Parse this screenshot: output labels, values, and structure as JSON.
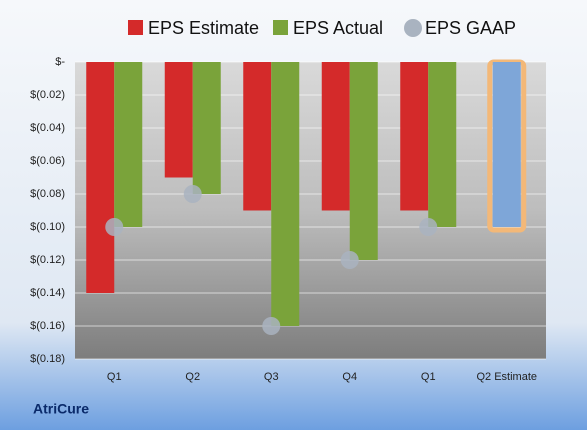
{
  "chart_data": {
    "type": "bar",
    "categories": [
      "Q1",
      "Q2",
      "Q3",
      "Q4",
      "Q1",
      "Q2 Estimate"
    ],
    "series": [
      {
        "name": "EPS Estimate",
        "color": "#d42a2a",
        "values": [
          -0.14,
          -0.07,
          -0.09,
          -0.09,
          -0.09,
          -0.1
        ],
        "highlight": {
          "color": "#7ea6d8",
          "outline": "#f3b878",
          "categories": [
            "Q2 Estimate"
          ]
        }
      },
      {
        "name": "EPS Actual",
        "color": "#7aa33a",
        "values": [
          -0.1,
          -0.08,
          -0.16,
          -0.12,
          -0.1,
          null
        ]
      },
      {
        "name": "EPS GAAP",
        "color": "#a9b3c0",
        "marker": "circle",
        "values": [
          -0.1,
          -0.08,
          -0.16,
          -0.12,
          -0.1,
          null
        ]
      }
    ],
    "ylim": [
      -0.18,
      0
    ],
    "yticks": [
      {
        "value": 0,
        "label": "$-"
      },
      {
        "value": -0.02,
        "label": "$(0.02)"
      },
      {
        "value": -0.04,
        "label": "$(0.04)"
      },
      {
        "value": -0.06,
        "label": "$(0.06)"
      },
      {
        "value": -0.08,
        "label": "$(0.08)"
      },
      {
        "value": -0.1,
        "label": "$(0.10)"
      },
      {
        "value": -0.12,
        "label": "$(0.12)"
      },
      {
        "value": -0.14,
        "label": "$(0.14)"
      },
      {
        "value": -0.16,
        "label": "$(0.16)"
      },
      {
        "value": -0.18,
        "label": "$(0.18)"
      }
    ],
    "grid": true,
    "legend": "top",
    "footer": "AtriCure"
  }
}
